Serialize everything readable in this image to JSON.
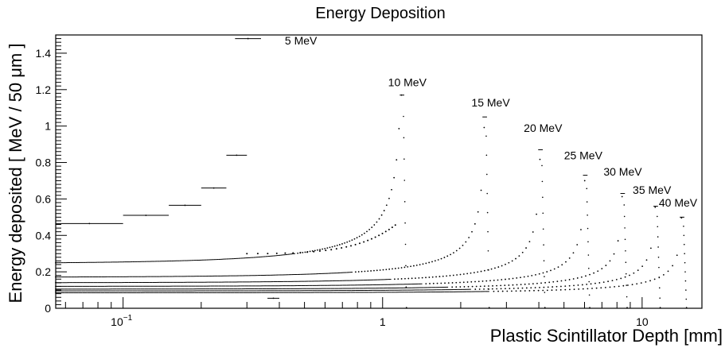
{
  "chart_data": {
    "type": "scatter",
    "title": "Energy Deposition",
    "xlabel": "Plastic Scintillator Depth [mm]",
    "ylabel": "Energy deposited [ MeV / 50 μm ]",
    "xscale": "log",
    "xlim": [
      0.055,
      17
    ],
    "ylim": [
      0,
      1.5
    ],
    "grid": false,
    "x_ticks": [
      {
        "value": 0.1,
        "base": "10",
        "exp": "−1"
      },
      {
        "value": 1,
        "label": "1"
      },
      {
        "value": 10,
        "label": "10"
      }
    ],
    "y_ticks": [
      {
        "value": 0,
        "label": "0"
      },
      {
        "value": 0.2,
        "label": "0.2"
      },
      {
        "value": 0.4,
        "label": "0.4"
      },
      {
        "value": 0.6,
        "label": "0.6"
      },
      {
        "value": 0.8,
        "label": "0.8"
      },
      {
        "value": 1.0,
        "label": "1"
      },
      {
        "value": 1.2,
        "label": "1.2"
      },
      {
        "value": 1.4,
        "label": "1.4"
      }
    ],
    "series": [
      {
        "name": "5 MeV",
        "label": "5 MeV",
        "label_at": [
          0.42,
          1.47
        ],
        "baseline": 0.24,
        "range": 0.38,
        "peak": 1.48,
        "peak_x": 0.3,
        "mode": "bins",
        "bins": [
          [
            0.055,
            0.1,
            0.465
          ],
          [
            0.1,
            0.15,
            0.51
          ],
          [
            0.15,
            0.2,
            0.565
          ],
          [
            0.2,
            0.25,
            0.66
          ],
          [
            0.25,
            0.3,
            0.84
          ],
          [
            0.27,
            0.34,
            1.48
          ],
          [
            0.36,
            0.4,
            0.055
          ]
        ]
      },
      {
        "name": "10 MeV",
        "label": "10 MeV",
        "label_at": [
          1.05,
          1.24
        ],
        "baseline": 0.245,
        "range": 1.2,
        "peak": 1.17
      },
      {
        "name": "15 MeV",
        "label": "15 MeV",
        "label_at": [
          2.2,
          1.13
        ],
        "baseline": 0.17,
        "range": 2.5,
        "peak": 1.05
      },
      {
        "name": "20 MeV",
        "label": "20 MeV",
        "label_at": [
          3.5,
          0.99
        ],
        "baseline": 0.14,
        "range": 4.1,
        "peak": 0.87
      },
      {
        "name": "25 MeV",
        "label": "25 MeV",
        "label_at": [
          5.0,
          0.84
        ],
        "baseline": 0.12,
        "range": 6.1,
        "peak": 0.73
      },
      {
        "name": "30 MeV",
        "label": "30 MeV",
        "label_at": [
          7.1,
          0.75
        ],
        "baseline": 0.105,
        "range": 8.5,
        "peak": 0.63
      },
      {
        "name": "35 MeV",
        "label": "35 MeV",
        "label_at": [
          9.2,
          0.65
        ],
        "baseline": 0.095,
        "range": 11.4,
        "peak": 0.56
      },
      {
        "name": "40 MeV",
        "label": "40 MeV",
        "label_at": [
          11.6,
          0.58
        ],
        "baseline": 0.085,
        "range": 14.4,
        "peak": 0.5
      }
    ]
  }
}
